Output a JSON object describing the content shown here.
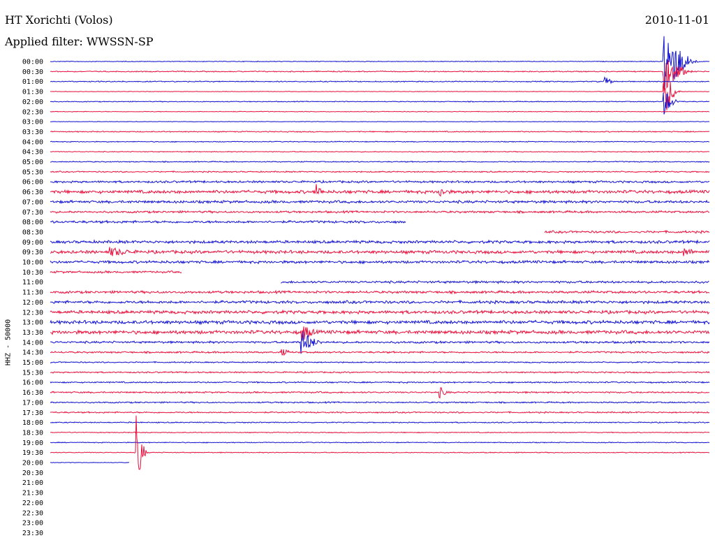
{
  "header": {
    "station": "HT Xorichti (Volos)",
    "filter": "Applied filter: WWSSN-SP",
    "date": "2010-11-01",
    "channel": "HHZ - 50000"
  },
  "colors": {
    "blue": "#1010d0",
    "red": "#e8103c"
  },
  "chart_data": {
    "type": "line",
    "ylabel": "HHZ - 50000",
    "y_tick_labels": [
      "00:00",
      "00:30",
      "01:00",
      "01:30",
      "02:00",
      "02:30",
      "03:00",
      "03:30",
      "04:00",
      "04:30",
      "05:00",
      "05:30",
      "06:00",
      "06:30",
      "07:00",
      "07:30",
      "08:00",
      "08:30",
      "09:00",
      "09:30",
      "10:00",
      "10:30",
      "11:00",
      "11:30",
      "12:00",
      "12:30",
      "13:00",
      "13:30",
      "14:00",
      "14:30",
      "15:00",
      "15:30",
      "16:00",
      "16:30",
      "17:00",
      "17:30",
      "18:00",
      "18:30",
      "19:00",
      "19:30",
      "20:00",
      "20:30",
      "21:00",
      "21:30",
      "22:00",
      "22:30",
      "23:00",
      "23:30"
    ],
    "trace_colors": [
      "blue",
      "red"
    ],
    "row_noise": [
      0.4,
      0.6,
      0.6,
      0.3,
      0.5,
      0.4,
      0.3,
      0.6,
      0.5,
      0.5,
      0.6,
      0.7,
      1.2,
      1.8,
      1.5,
      1.2,
      1.4,
      1.3,
      1.6,
      1.8,
      1.5,
      1.2,
      1.3,
      1.4,
      1.6,
      1.8,
      1.9,
      2.0,
      1.2,
      1.0,
      0.7,
      0.8,
      0.8,
      0.9,
      0.8,
      0.8,
      0.6,
      0.5,
      0.5,
      0.5,
      0.3,
      0,
      0,
      0,
      0,
      0,
      0,
      0
    ],
    "row_coverage_min": [
      [
        0,
        30
      ],
      [
        0,
        30
      ],
      [
        0,
        30
      ],
      [
        0,
        30
      ],
      [
        0,
        30
      ],
      [
        0,
        30
      ],
      [
        0,
        30
      ],
      [
        0,
        30
      ],
      [
        0,
        30
      ],
      [
        0,
        30
      ],
      [
        0,
        30
      ],
      [
        0,
        30
      ],
      [
        0,
        30
      ],
      [
        0,
        30
      ],
      [
        0,
        30
      ],
      [
        0,
        30
      ],
      [
        0,
        16.2
      ],
      [
        22.5,
        30
      ],
      [
        0,
        30
      ],
      [
        0,
        30
      ],
      [
        0,
        30
      ],
      [
        0,
        6
      ],
      [
        10.5,
        30
      ],
      [
        0,
        30
      ],
      [
        0,
        30
      ],
      [
        0,
        30
      ],
      [
        0,
        30
      ],
      [
        0,
        30
      ],
      [
        0,
        30
      ],
      [
        0,
        30
      ],
      [
        0,
        30
      ],
      [
        0,
        30
      ],
      [
        0,
        30
      ],
      [
        0,
        30
      ],
      [
        0,
        30
      ],
      [
        0,
        30
      ],
      [
        0,
        30
      ],
      [
        0,
        30
      ],
      [
        0,
        30
      ],
      [
        0,
        30
      ],
      [
        0,
        3.6
      ],
      null,
      null,
      null,
      null,
      null,
      null,
      null
    ],
    "events": [
      {
        "row": 0,
        "start_min": 27.9,
        "amp": 55,
        "dur_min": 1.8
      },
      {
        "row": 1,
        "start_min": 27.9,
        "amp": 30,
        "dur_min": 1.5
      },
      {
        "row": 2,
        "start_min": 25.2,
        "amp": 8,
        "dur_min": 0.6
      },
      {
        "row": 3,
        "start_min": 27.9,
        "amp": 40,
        "dur_min": 0.9
      },
      {
        "row": 4,
        "start_min": 27.9,
        "amp": 20,
        "dur_min": 0.9
      },
      {
        "row": 13,
        "start_min": 12.0,
        "amp": 14,
        "dur_min": 0.6
      },
      {
        "row": 13,
        "start_min": 17.7,
        "amp": 8,
        "dur_min": 0.6
      },
      {
        "row": 19,
        "start_min": 2.7,
        "amp": 6,
        "dur_min": 1.5
      },
      {
        "row": 19,
        "start_min": 28.8,
        "amp": 6,
        "dur_min": 0.9
      },
      {
        "row": 27,
        "start_min": 11.4,
        "amp": 14,
        "dur_min": 0.9
      },
      {
        "row": 28,
        "start_min": 11.4,
        "amp": 18,
        "dur_min": 1.2
      },
      {
        "row": 29,
        "start_min": 10.5,
        "amp": 6,
        "dur_min": 0.6
      },
      {
        "row": 33,
        "start_min": 17.7,
        "amp": 8,
        "dur_min": 0.6
      },
      {
        "row": 39,
        "start_min": 3.9,
        "amp": 55,
        "dur_min": 0.6
      }
    ]
  }
}
